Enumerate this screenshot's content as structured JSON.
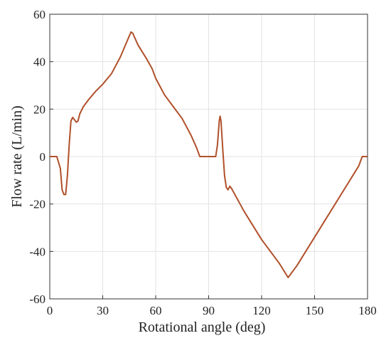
{
  "chart_data": {
    "type": "line",
    "x_label": "Rotational angle (deg)",
    "y_label": "Flow rate (L/min)",
    "x": [
      0,
      4,
      6,
      7,
      8,
      9,
      10,
      11,
      12,
      13,
      14,
      15,
      16,
      17,
      19,
      22,
      26,
      30,
      35,
      40,
      44,
      46,
      47,
      50,
      55,
      58,
      60,
      65,
      70,
      75,
      80,
      83,
      85,
      86,
      94,
      95,
      96,
      96.5,
      97,
      98,
      99,
      100,
      101,
      102,
      103,
      110,
      120,
      130,
      135,
      140,
      150,
      160,
      170,
      175,
      177,
      180
    ],
    "series": [
      {
        "color": "#b0502a",
        "values": [
          0,
          0,
          -5,
          -14,
          -16,
          -16,
          -8,
          5,
          15,
          16.5,
          15.5,
          14.5,
          15,
          18,
          21,
          24,
          27.5,
          30.5,
          35,
          42,
          49,
          52.5,
          52,
          47,
          41,
          37,
          33,
          26,
          21,
          16,
          9,
          4,
          0,
          0,
          0,
          5,
          15,
          17,
          15,
          3,
          -8,
          -13,
          -14,
          -12.5,
          -13.5,
          -23,
          -35,
          -45,
          -51,
          -46,
          -34,
          -22,
          -10,
          -4,
          0,
          0
        ]
      }
    ],
    "xlim": [
      0,
      180
    ],
    "xticks": [
      0,
      30,
      60,
      90,
      120,
      150,
      180
    ],
    "ylim": [
      -60,
      60
    ],
    "yticks": [
      -60,
      -40,
      -20,
      0,
      20,
      40,
      60
    ],
    "grid": true
  }
}
